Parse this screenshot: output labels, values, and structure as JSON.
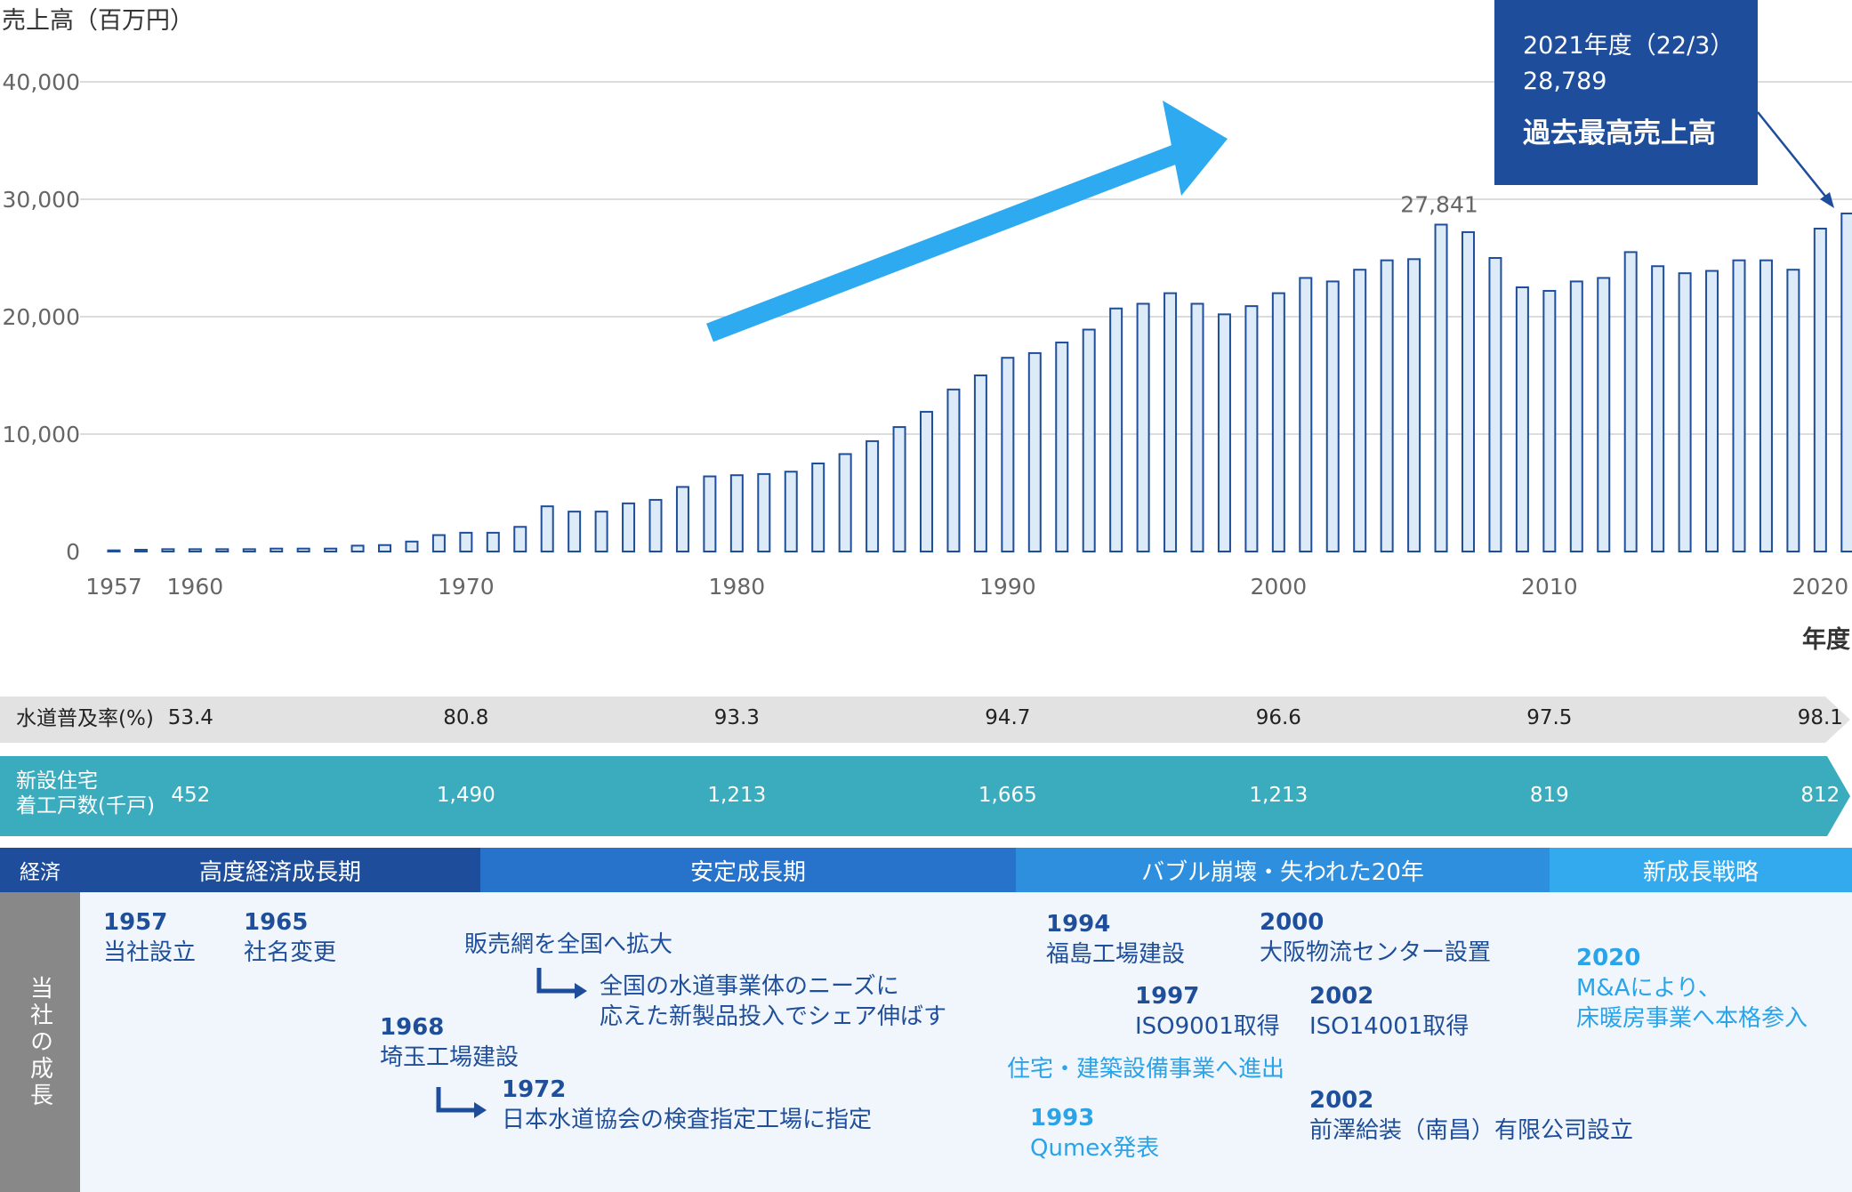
{
  "chart_data": {
    "type": "bar",
    "ylabel": "売上高（百万円）",
    "xlabel": "年度",
    "ylim": [
      0,
      40000
    ],
    "yticks": [
      "0",
      "10,000",
      "20,000",
      "30,000",
      "40,000"
    ],
    "xticks": [
      {
        "year": 1957,
        "label": "1957"
      },
      {
        "year": 1960,
        "label": "1960"
      },
      {
        "year": 1970,
        "label": "1970"
      },
      {
        "year": 1980,
        "label": "1980"
      },
      {
        "year": 1990,
        "label": "1990"
      },
      {
        "year": 2000,
        "label": "2000"
      },
      {
        "year": 2010,
        "label": "2010"
      },
      {
        "year": 2020,
        "label": "2020"
      }
    ],
    "x": [
      1957,
      1958,
      1959,
      1960,
      1961,
      1962,
      1963,
      1964,
      1965,
      1966,
      1967,
      1968,
      1969,
      1970,
      1971,
      1972,
      1973,
      1974,
      1975,
      1976,
      1977,
      1978,
      1979,
      1980,
      1981,
      1982,
      1983,
      1984,
      1985,
      1986,
      1987,
      1988,
      1989,
      1990,
      1991,
      1992,
      1993,
      1994,
      1995,
      1996,
      1997,
      1998,
      1999,
      2000,
      2001,
      2002,
      2003,
      2004,
      2005,
      2006,
      2007,
      2008,
      2009,
      2010,
      2011,
      2012,
      2013,
      2014,
      2015,
      2016,
      2017,
      2018,
      2019,
      2020,
      2021
    ],
    "values": [
      100,
      150,
      200,
      200,
      200,
      200,
      250,
      250,
      250,
      500,
      550,
      850,
      1400,
      1600,
      1600,
      2100,
      3850,
      3400,
      3400,
      4100,
      4400,
      5500,
      6400,
      6500,
      6600,
      6800,
      7500,
      8300,
      9400,
      10600,
      11900,
      13800,
      15000,
      16500,
      16900,
      17800,
      18900,
      20700,
      21100,
      22000,
      21100,
      20200,
      20900,
      22000,
      23300,
      23000,
      24000,
      24800,
      24900,
      27841,
      27200,
      25000,
      22500,
      22200,
      23000,
      23300,
      25500,
      24300,
      23700,
      23900,
      24800,
      24800,
      24000,
      27500,
      28789
    ],
    "annotations": [
      {
        "year": 2006,
        "text": "27,841"
      }
    ],
    "callout": {
      "line1": "2021年度（22/3）",
      "line2": "28,789",
      "line3": "過去最高売上高"
    }
  },
  "indicators": {
    "water": {
      "label": "水道普及率(%)",
      "values": [
        {
          "year": 1960,
          "text": "53.4"
        },
        {
          "year": 1970,
          "text": "80.8"
        },
        {
          "year": 1980,
          "text": "93.3"
        },
        {
          "year": 1990,
          "text": "94.7"
        },
        {
          "year": 2000,
          "text": "96.6"
        },
        {
          "year": 2010,
          "text": "97.5"
        },
        {
          "year": 2020,
          "text": "98.1"
        }
      ],
      "color": "#e2e2e2"
    },
    "housing": {
      "label_line1": "新設住宅",
      "label_line2": "着工戸数(千戸)",
      "values": [
        {
          "year": 1960,
          "text": "452"
        },
        {
          "year": 1970,
          "text": "1,490"
        },
        {
          "year": 1980,
          "text": "1,213"
        },
        {
          "year": 1990,
          "text": "1,665"
        },
        {
          "year": 2000,
          "text": "1,213"
        },
        {
          "year": 2010,
          "text": "819"
        },
        {
          "year": 2020,
          "text": "812"
        }
      ],
      "color": "#3aacbe"
    }
  },
  "economy": {
    "label": "経済",
    "eras": [
      {
        "name": "高度経済成長期",
        "color": "#1e4d9c"
      },
      {
        "name": "安定成長期",
        "color": "#2773cc"
      },
      {
        "name": "バブル崩壊・失われた20年",
        "color": "#2f8fdf"
      },
      {
        "name": "新成長戦略",
        "color": "#34aaee"
      }
    ]
  },
  "growth": {
    "label": "当社の成長",
    "events": {
      "e1957": {
        "year": "1957",
        "text": "当社設立"
      },
      "e1965": {
        "year": "1965",
        "text": "社名変更"
      },
      "sales": {
        "text": "販売網を全国へ拡大"
      },
      "needs": {
        "line1": "全国の水道事業体のニーズに",
        "line2": "応えた新製品投入でシェア伸ばす"
      },
      "e1968": {
        "year": "1968",
        "text": "埼玉工場建設"
      },
      "e1972": {
        "year": "1972",
        "text": "日本水道協会の検査指定工場に指定"
      },
      "e1994": {
        "year": "1994",
        "text": "福島工場建設"
      },
      "e2000": {
        "year": "2000",
        "text": "大阪物流センター設置"
      },
      "e1997": {
        "year": "1997",
        "text": "ISO9001取得"
      },
      "e2002a": {
        "year": "2002",
        "text": "ISO14001取得"
      },
      "housing": {
        "text": "住宅・建築設備事業へ進出"
      },
      "e1993": {
        "year": "1993",
        "text": "Qumex発表"
      },
      "e2002b": {
        "year": "2002",
        "text": "前澤給装（南昌）有限公司設立"
      },
      "e2020": {
        "year": "2020",
        "line1": "M&Aにより、",
        "line2": "床暖房事業へ本格参入"
      }
    }
  }
}
